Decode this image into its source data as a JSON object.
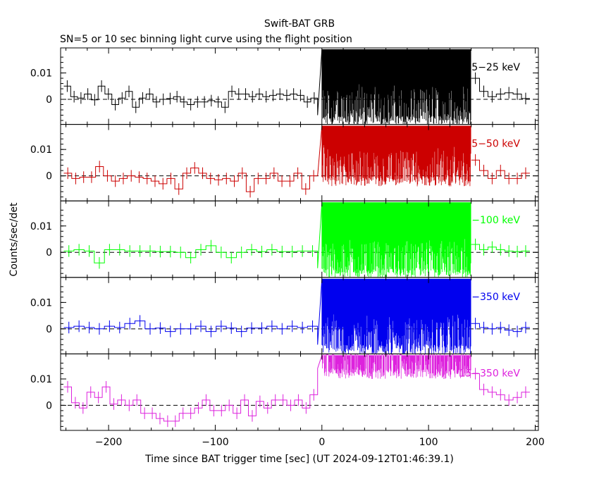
{
  "title": "Swift-BAT GRB",
  "subtitle": "SN=5 or 10 sec binning light curve using the flight position",
  "chart_data": {
    "type": "line",
    "xlabel": "Time since BAT trigger time [sec] (UT 2024-09-12T01:46:39.1)",
    "ylabel": "Counts/sec/det",
    "xlim": [
      -245,
      203
    ],
    "ylim": [
      -0.0095,
      0.0195
    ],
    "x_ticks": [
      -200,
      -100,
      0,
      100,
      200
    ],
    "y_ticks": [
      0,
      0.01
    ],
    "y_tick_labels": [
      "0",
      "0.01"
    ],
    "x_tick_labels": [
      "−200",
      "−100",
      "0",
      "100",
      "200"
    ],
    "zero_line": "dashed",
    "panels": [
      {
        "name": "15−25 keV",
        "color": "#000000",
        "pre": [
          0.005,
          0.001,
          0.0005,
          0.002,
          -0.0002,
          0.005,
          0.002,
          -0.002,
          0.0005,
          0.003,
          -0.003,
          0.0005,
          0.002,
          -0.001,
          0.0,
          0.0003,
          0.001,
          -0.001,
          -0.002,
          -0.001,
          -0.001,
          -0.0005,
          -0.001,
          -0.003,
          0.003,
          0.002,
          0.002,
          0.001,
          0.002,
          0.001,
          0.0015,
          0.002,
          0.0015,
          0.002,
          0.0015,
          -0.001,
          0.0005
        ],
        "burst_lo": -0.01,
        "burst_hi": 0.019,
        "post": [
          0.008,
          0.003,
          0.001,
          0.002,
          0.0025,
          0.002,
          0.0003
        ]
      },
      {
        "name": "25−50 keV",
        "color": "#cc0000",
        "pre": [
          0.001,
          -0.001,
          -0.0005,
          -0.0005,
          0.0035,
          0.0,
          -0.002,
          -0.001,
          0.0,
          -0.0005,
          -0.001,
          -0.002,
          -0.003,
          -0.001,
          -0.005,
          0.001,
          0.003,
          0.001,
          -0.001,
          -0.0015,
          -0.001,
          -0.002,
          0.001,
          -0.006,
          -0.001,
          -0.001,
          0.001,
          -0.002,
          -0.002,
          0.001,
          -0.005,
          0.0
        ],
        "burst_lo": -0.004,
        "burst_hi": 0.019,
        "post": [
          0.006,
          0.002,
          -0.001,
          0.002,
          -0.001,
          -0.001,
          0.001
        ]
      },
      {
        "name": "50−100 keV",
        "color": "#00ff00",
        "pre": [
          0.0005,
          0.001,
          0.0005,
          -0.004,
          0.001,
          0.001,
          0.0005,
          0.0005,
          0.0005,
          0.0003,
          0.0003,
          0.0,
          -0.002,
          0.001,
          0.0025,
          0.0,
          -0.002,
          0.0,
          0.001,
          0.0003,
          0.001,
          0.0003,
          0.0003,
          0.0005,
          0.0005
        ],
        "burst_lo": -0.01,
        "burst_hi": 0.019,
        "post": [
          0.003,
          0.001,
          0.002,
          0.001,
          0.0005,
          0.0003,
          0.0005
        ]
      },
      {
        "name": "100−350 keV",
        "color": "#0000ee",
        "pre": [
          0.0005,
          0.001,
          0.0005,
          0.0,
          0.001,
          0.0005,
          0.002,
          0.003,
          0.0,
          0.0003,
          -0.001,
          0.0,
          0.0,
          0.001,
          -0.001,
          0.001,
          0.0003,
          -0.001,
          0.0003,
          0.0003,
          0.001,
          0.0,
          0.001,
          0.0005,
          0.001
        ],
        "burst_lo": -0.01,
        "burst_hi": 0.019,
        "post": [
          0.002,
          0.0005,
          0.0,
          0.0005,
          -0.0005,
          -0.001,
          0.0005
        ]
      },
      {
        "name": "15−350 keV",
        "color": "#dd22dd",
        "pre": [
          0.007,
          0.001,
          -0.001,
          0.005,
          0.003,
          0.007,
          0.0005,
          0.002,
          0.0,
          0.002,
          -0.003,
          -0.003,
          -0.005,
          -0.006,
          -0.006,
          -0.003,
          -0.003,
          -0.001,
          0.002,
          -0.002,
          -0.002,
          0.0,
          -0.003,
          0.002,
          -0.004,
          0.0015,
          -0.001,
          0.002,
          0.002,
          0.0,
          0.002,
          -0.001,
          0.004
        ],
        "burst_lo": 0.01,
        "burst_hi": 0.019,
        "post": [
          0.012,
          0.006,
          0.005,
          0.004,
          0.002,
          0.003,
          0.005
        ]
      }
    ]
  }
}
